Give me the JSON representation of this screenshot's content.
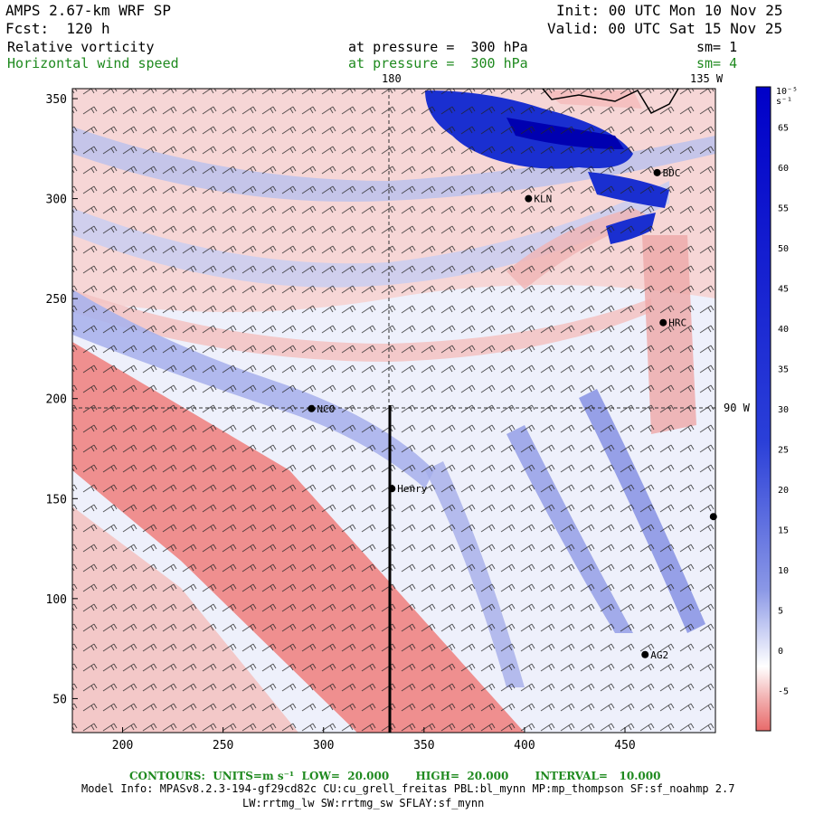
{
  "header": {
    "model": "AMPS 2.67-km WRF SP",
    "init": "Init: 00 UTC Mon 10 Nov 25",
    "fcst": "Fcst:  120 h",
    "valid": "Valid: 00 UTC Sat 15 Nov 25"
  },
  "fields": [
    {
      "name": "Relative vorticity",
      "level": "at pressure =  300 hPa",
      "sm": "sm= 1",
      "color": "#000000"
    },
    {
      "name": "Horizontal wind speed",
      "level": "at pressure =  300 hPa",
      "sm": "sm= 4",
      "color": "#1f8a1f"
    }
  ],
  "map": {
    "x_ticks": [
      "200",
      "250",
      "300",
      "350",
      "400",
      "450"
    ],
    "y_ticks": [
      "350",
      "300",
      "250",
      "200",
      "150",
      "100",
      "50"
    ],
    "x_range": [
      175,
      495
    ],
    "y_range": [
      33,
      355
    ],
    "meridian_label": "180",
    "meridian_135_label": "135 W",
    "parallel_label": "90 W",
    "stations": [
      {
        "name": "BDC",
        "x": 466,
        "y": 313
      },
      {
        "name": "KLN",
        "x": 402,
        "y": 300
      },
      {
        "name": "HRC",
        "x": 469,
        "y": 238
      },
      {
        "name": "NCO",
        "x": 294,
        "y": 195
      },
      {
        "name": "Henry",
        "x": 334,
        "y": 155
      },
      {
        "name": "AG2",
        "x": 460,
        "y": 72
      },
      {
        "name": "",
        "x": 494,
        "y": 141
      }
    ]
  },
  "colorbar": {
    "units": "10⁻⁵ s⁻¹",
    "labels": [
      "65",
      "60",
      "55",
      "50",
      "45",
      "40",
      "35",
      "30",
      "25",
      "20",
      "15",
      "10",
      "5",
      "0",
      "-5"
    ],
    "colors": {
      "positive": "#0000cc",
      "zero": "#ffffff",
      "negative": "#e86a6a"
    }
  },
  "footer": {
    "contours": "CONTOURS:  UNITS=m s⁻¹  LOW=  20.000       HIGH=  20.000       INTERVAL=   10.000",
    "model_info": "Model Info: MPASv8.2.3-194-gf29cd82c CU:cu_grell_freitas PBL:bl_mynn MP:mp_thompson SF:sf_noahmp 2.7",
    "model_info2": "LW:rrtmg_lw SW:rrtmg_sw SFLAY:sf_mynn"
  }
}
